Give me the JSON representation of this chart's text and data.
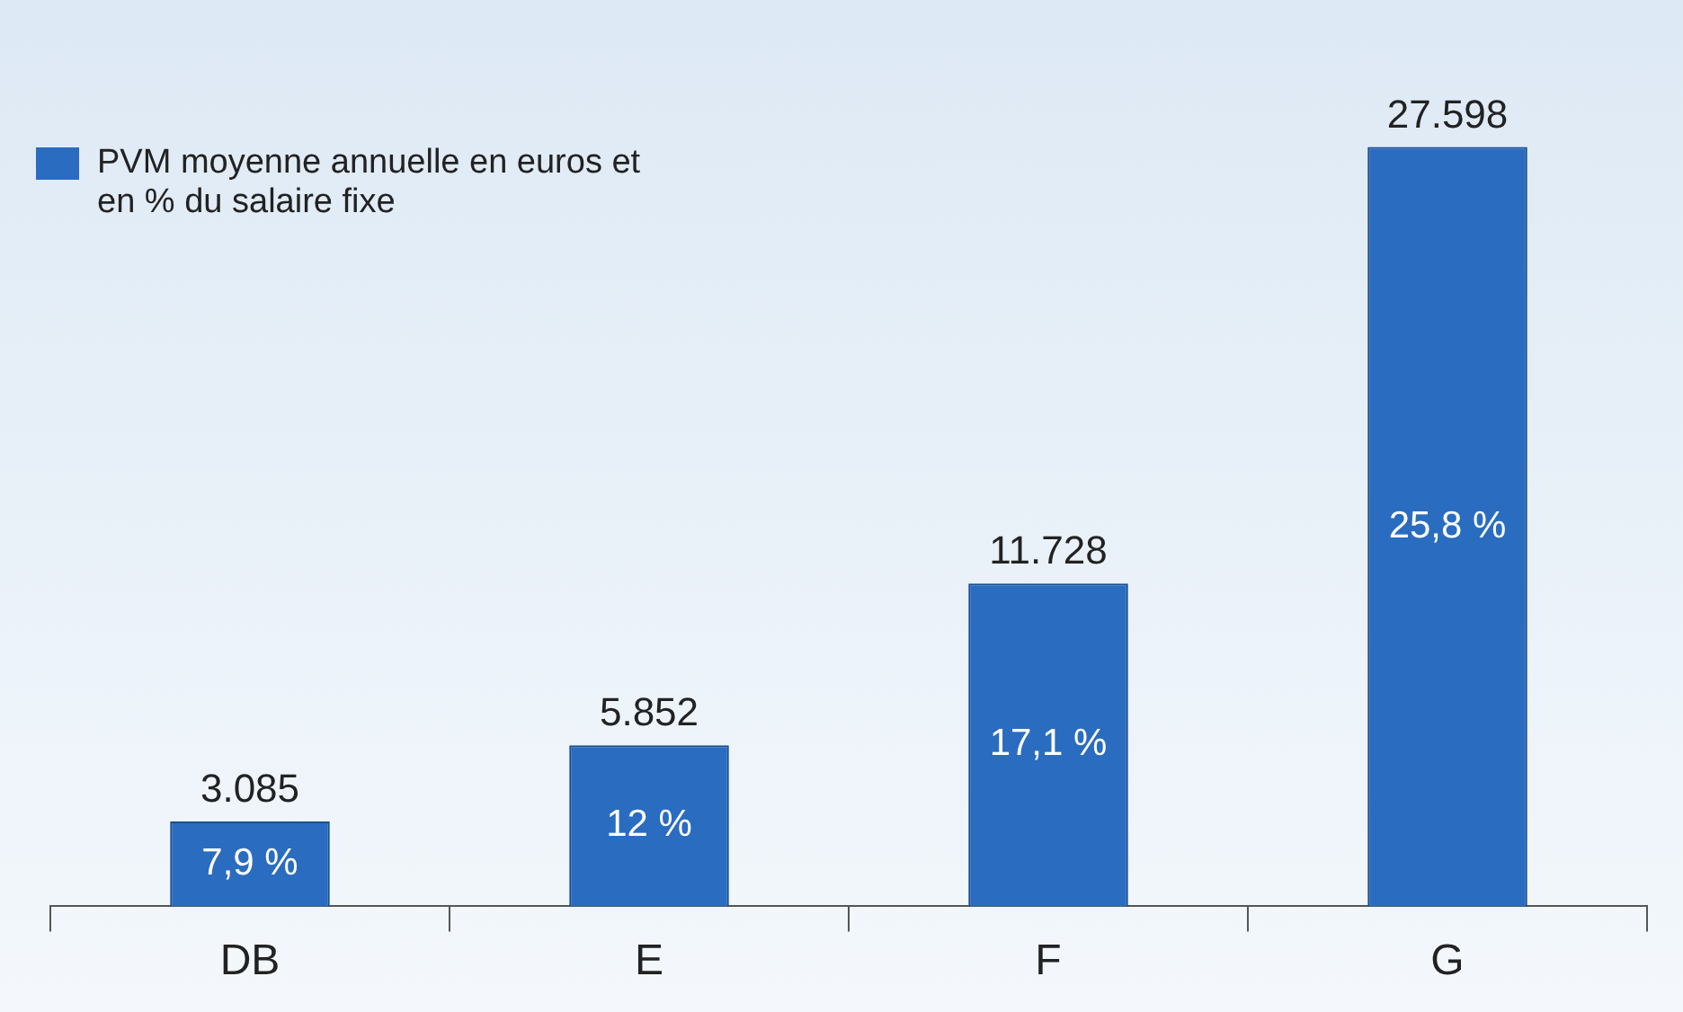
{
  "chart_data": {
    "type": "bar",
    "relative": false,
    "categories": [
      "DB",
      "E",
      "F",
      "G"
    ],
    "series": [
      {
        "name": "PVM moyenne annuelle en euros et en % du salaire fixe",
        "color": "#2a6cbf",
        "values": [
          3085,
          5852,
          11728,
          27598
        ],
        "value_labels": [
          "3.085",
          "5.852",
          "11.728",
          "27.598"
        ]
      }
    ],
    "annotations": [
      "7,9 %",
      "12 %",
      "17,1 %",
      "25,8 %"
    ],
    "legend": "top left"
  }
}
